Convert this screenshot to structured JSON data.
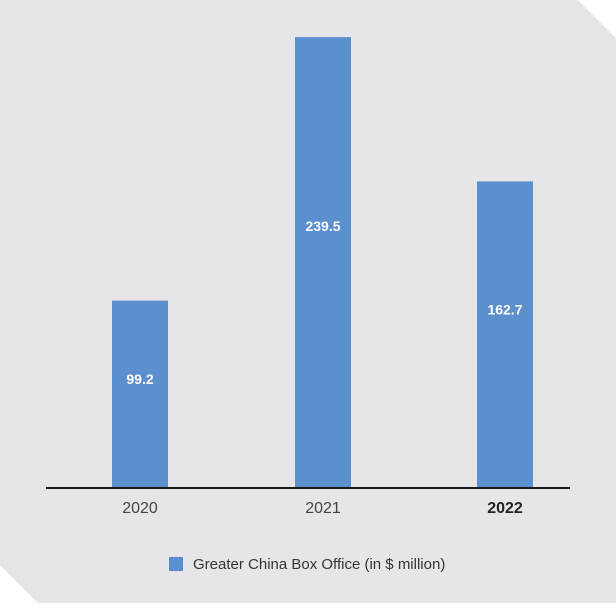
{
  "chart_data": {
    "type": "bar",
    "categories": [
      "2020",
      "2021",
      "2022"
    ],
    "highlight_category": "2022",
    "series": [
      {
        "name": "Greater China Box Office (in $ million)",
        "values": [
          99.2,
          239.5,
          162.7
        ],
        "color": "#5b8fcd"
      }
    ],
    "ylim": [
      0,
      255
    ],
    "grid": false,
    "legend_position": "bottom-center"
  },
  "colors": {
    "panel": "#e6e6e8",
    "bar": "#5b8fcd",
    "axis": "#1a1a1a",
    "tick_label": "#444444",
    "data_label": "#ffffff",
    "legend_text": "#333333"
  }
}
